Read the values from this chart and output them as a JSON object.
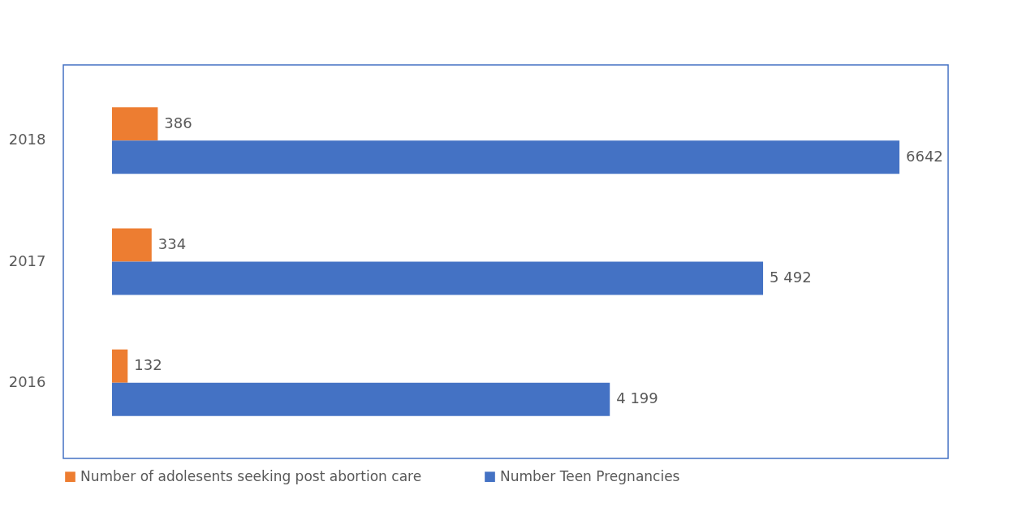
{
  "chart_data": {
    "type": "bar",
    "orientation": "horizontal",
    "categories": [
      "2018",
      "2017",
      "2016"
    ],
    "series": [
      {
        "name": "Number of adolesents seeking  post abortion care",
        "color": "#ed7d31",
        "values": [
          386,
          334,
          132
        ],
        "value_labels": [
          "386",
          "334",
          "132"
        ]
      },
      {
        "name": "Number Teen Pregnancies",
        "color": "#4472c4",
        "values": [
          6642,
          5492,
          4199
        ],
        "value_labels": [
          "6642",
          "5 492",
          "4 199"
        ]
      }
    ],
    "legend": "bottom",
    "grid": false
  }
}
